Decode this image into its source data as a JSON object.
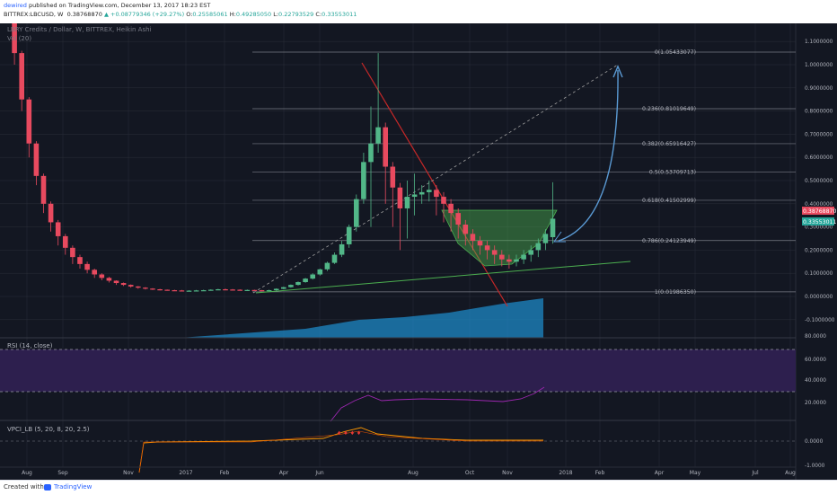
{
  "header": {
    "author": "dewired",
    "published": "published on TradingView.com, December 13, 2017 18:23 EST",
    "symbol": "BITTREX:LBCUSD, W",
    "last": "0.38768870",
    "change": "▲ +0.08779346 (+29.27%)",
    "o_label": "O:",
    "o_value": "0.25585061",
    "h_label": "H:",
    "h_value": "0.49285050",
    "l_label": "L:",
    "l_value": "0.22793529",
    "c_label": "C:",
    "c_value": "0.33553011"
  },
  "pane_labels": {
    "main": "LBRY Credits / Dollar, W, BITTREX, Heikin Ashi",
    "vol": "Vol (20)",
    "rsi": "RSI (14, close)",
    "vpci": "VPCI_LB (5, 20, 8, 20, 2.5)"
  },
  "footer": {
    "created_with": "Created with",
    "brand": "TradingView"
  },
  "colors": {
    "background": "#131722",
    "bull": "#52b788",
    "bear": "#e84a5f",
    "grid": "#2a2e39",
    "fib": "#787b86",
    "rsi_band": "#2d1f4e",
    "rsi_line": "#9c27b0",
    "vpci_line": "#ff9800",
    "volume": "#1e88c5",
    "axis_text": "#b2b5be",
    "trend_red": "#c62828",
    "trend_green": "#4caf50",
    "arrow_blue": "#5b9bd5"
  },
  "chart_data": {
    "type": "candlestick",
    "title": "LBRY Credits / Dollar, W, BITTREX, Heikin Ashi",
    "x_ticks": [
      "Aug",
      "Sep",
      "Nov",
      "2017",
      "Feb",
      "Apr",
      "Jun",
      "Aug",
      "Oct",
      "Nov",
      "2018",
      "Feb",
      "Apr",
      "May",
      "Jul",
      "Aug"
    ],
    "y_ticks": [
      "1.2000000",
      "1.1000000",
      "1.0000000",
      "0.9000000",
      "0.8000000",
      "0.7000000",
      "0.6000000",
      "0.5000000",
      "0.4000000",
      "0.3000000",
      "0.2000000",
      "0.1000000",
      "0.0000000",
      "-0.1000000"
    ],
    "price_labels": {
      "last": "0.38768870",
      "close": "0.33553011"
    },
    "fib_levels": [
      {
        "label": "0(1.05433077)",
        "value": 1.05433077
      },
      {
        "label": "0.236(0.81019649)",
        "value": 0.81019649
      },
      {
        "label": "0.382(0.65916427)",
        "value": 0.65916427
      },
      {
        "label": "0.5(0.53709713)",
        "value": 0.53709713
      },
      {
        "label": "0.618(0.41502999)",
        "value": 0.41502999
      },
      {
        "label": "0.786(0.24123949)",
        "value": 0.24123949
      },
      {
        "label": "1(0.01986350)",
        "value": 0.0198635
      }
    ],
    "candles": [
      [
        1.45,
        1.4,
        1.48,
        1.35
      ],
      [
        1.4,
        1.05,
        1.42,
        1.0
      ],
      [
        1.05,
        0.85,
        1.06,
        0.8
      ],
      [
        0.85,
        0.66,
        0.86,
        0.6
      ],
      [
        0.66,
        0.52,
        0.67,
        0.48
      ],
      [
        0.52,
        0.4,
        0.53,
        0.36
      ],
      [
        0.4,
        0.32,
        0.41,
        0.28
      ],
      [
        0.32,
        0.26,
        0.33,
        0.22
      ],
      [
        0.26,
        0.21,
        0.27,
        0.18
      ],
      [
        0.21,
        0.17,
        0.22,
        0.14
      ],
      [
        0.17,
        0.14,
        0.18,
        0.12
      ],
      [
        0.14,
        0.115,
        0.15,
        0.1
      ],
      [
        0.115,
        0.095,
        0.12,
        0.08
      ],
      [
        0.095,
        0.08,
        0.1,
        0.07
      ],
      [
        0.08,
        0.068,
        0.085,
        0.06
      ],
      [
        0.068,
        0.058,
        0.07,
        0.05
      ],
      [
        0.058,
        0.05,
        0.06,
        0.045
      ],
      [
        0.05,
        0.043,
        0.052,
        0.038
      ],
      [
        0.043,
        0.038,
        0.045,
        0.033
      ],
      [
        0.038,
        0.034,
        0.04,
        0.03
      ],
      [
        0.034,
        0.031,
        0.036,
        0.028
      ],
      [
        0.031,
        0.029,
        0.033,
        0.026
      ],
      [
        0.029,
        0.027,
        0.03,
        0.025
      ],
      [
        0.027,
        0.026,
        0.029,
        0.024
      ],
      [
        0.026,
        0.025,
        0.028,
        0.023
      ],
      [
        0.025,
        0.025,
        0.027,
        0.022
      ],
      [
        0.025,
        0.026,
        0.028,
        0.023
      ],
      [
        0.026,
        0.027,
        0.029,
        0.024
      ],
      [
        0.027,
        0.029,
        0.031,
        0.025
      ],
      [
        0.029,
        0.031,
        0.033,
        0.027
      ],
      [
        0.031,
        0.03,
        0.034,
        0.028
      ],
      [
        0.03,
        0.029,
        0.032,
        0.027
      ],
      [
        0.029,
        0.028,
        0.031,
        0.026
      ],
      [
        0.028,
        0.028,
        0.03,
        0.026
      ],
      [
        0.028,
        0.027,
        0.029,
        0.025
      ],
      [
        0.027,
        0.025,
        0.028,
        0.023
      ],
      [
        0.025,
        0.027,
        0.029,
        0.023
      ],
      [
        0.027,
        0.033,
        0.035,
        0.025
      ],
      [
        0.033,
        0.04,
        0.042,
        0.031
      ],
      [
        0.04,
        0.05,
        0.052,
        0.038
      ],
      [
        0.05,
        0.062,
        0.065,
        0.047
      ],
      [
        0.062,
        0.077,
        0.08,
        0.059
      ],
      [
        0.077,
        0.095,
        0.1,
        0.073
      ],
      [
        0.095,
        0.117,
        0.12,
        0.09
      ],
      [
        0.117,
        0.145,
        0.15,
        0.11
      ],
      [
        0.145,
        0.18,
        0.19,
        0.14
      ],
      [
        0.18,
        0.225,
        0.24,
        0.17
      ],
      [
        0.225,
        0.3,
        0.31,
        0.21
      ],
      [
        0.3,
        0.42,
        0.44,
        0.28
      ],
      [
        0.42,
        0.58,
        0.62,
        0.4
      ],
      [
        0.58,
        0.66,
        0.82,
        0.3
      ],
      [
        0.66,
        0.73,
        1.05,
        0.62
      ],
      [
        0.73,
        0.56,
        0.75,
        0.4
      ],
      [
        0.56,
        0.47,
        0.58,
        0.3
      ],
      [
        0.47,
        0.38,
        0.49,
        0.2
      ],
      [
        0.38,
        0.43,
        0.5,
        0.25
      ],
      [
        0.43,
        0.44,
        0.53,
        0.35
      ],
      [
        0.44,
        0.45,
        0.48,
        0.4
      ],
      [
        0.45,
        0.46,
        0.5,
        0.41
      ],
      [
        0.46,
        0.43,
        0.48,
        0.35
      ],
      [
        0.43,
        0.4,
        0.45,
        0.32
      ],
      [
        0.4,
        0.36,
        0.42,
        0.28
      ],
      [
        0.36,
        0.31,
        0.38,
        0.25
      ],
      [
        0.31,
        0.27,
        0.33,
        0.22
      ],
      [
        0.27,
        0.24,
        0.29,
        0.2
      ],
      [
        0.24,
        0.22,
        0.26,
        0.18
      ],
      [
        0.22,
        0.2,
        0.24,
        0.16
      ],
      [
        0.2,
        0.18,
        0.22,
        0.14
      ],
      [
        0.18,
        0.16,
        0.2,
        0.13
      ],
      [
        0.16,
        0.15,
        0.18,
        0.12
      ],
      [
        0.15,
        0.16,
        0.18,
        0.13
      ],
      [
        0.16,
        0.18,
        0.2,
        0.14
      ],
      [
        0.18,
        0.2,
        0.22,
        0.15
      ],
      [
        0.2,
        0.23,
        0.25,
        0.17
      ],
      [
        0.23,
        0.27,
        0.29,
        0.2
      ],
      [
        0.25585061,
        0.33553011,
        0.4928505,
        0.22793529
      ]
    ],
    "rsi_band": [
      30,
      70
    ],
    "rsi_y_ticks": [
      "80.0000",
      "60.0000",
      "40.0000",
      "20.0000"
    ],
    "vpci_y_ticks": [
      "0.0000",
      "-1.0000"
    ]
  }
}
